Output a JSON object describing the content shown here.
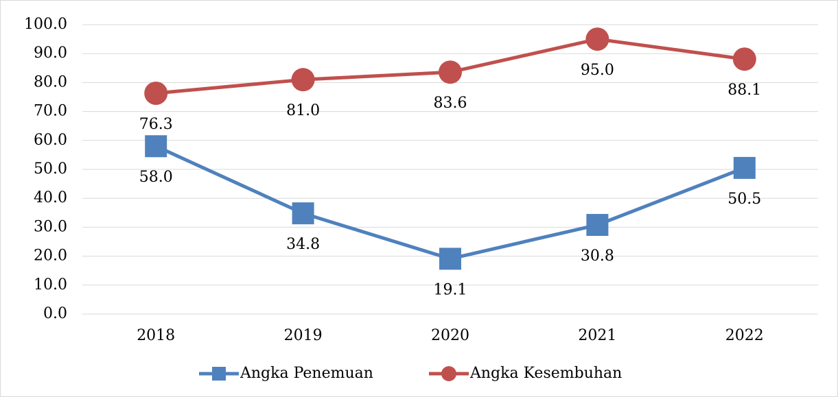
{
  "chart_data": {
    "type": "line",
    "categories": [
      "2018",
      "2019",
      "2020",
      "2021",
      "2022"
    ],
    "series": [
      {
        "name": "Angka Penemuan",
        "color": "#4f81bd",
        "marker": "square",
        "values": [
          58.0,
          34.8,
          19.1,
          30.8,
          50.5
        ],
        "value_labels": [
          "58.0",
          "34.8",
          "19.1",
          "30.8",
          "50.5"
        ]
      },
      {
        "name": "Angka Kesembuhan",
        "color": "#c0504d",
        "marker": "circle",
        "values": [
          76.3,
          81.0,
          83.6,
          95.0,
          88.1
        ],
        "value_labels": [
          "76.3",
          "81.0",
          "83.6",
          "95.0",
          "88.1"
        ]
      }
    ],
    "ylim": [
      0,
      100
    ],
    "yticks": [
      {
        "value": 0,
        "label": "0.0"
      },
      {
        "value": 10,
        "label": "10.0"
      },
      {
        "value": 20,
        "label": "20.0"
      },
      {
        "value": 30,
        "label": "30.0"
      },
      {
        "value": 40,
        "label": "40.0"
      },
      {
        "value": 50,
        "label": "50.0"
      },
      {
        "value": 60,
        "label": "60.0"
      },
      {
        "value": 70,
        "label": "70.0"
      },
      {
        "value": 80,
        "label": "80.0"
      },
      {
        "value": 90,
        "label": "90.0"
      },
      {
        "value": 100,
        "label": "100.0"
      }
    ],
    "grid": true,
    "legend": "bottom"
  }
}
